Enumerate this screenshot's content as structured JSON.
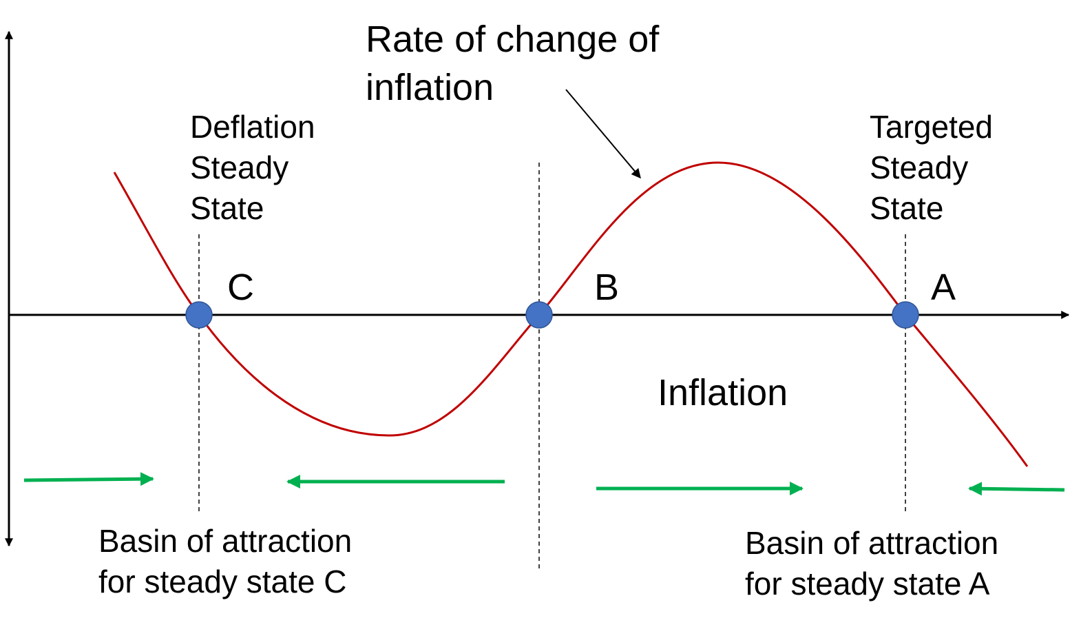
{
  "title": {
    "line1": "Rate of change of",
    "line2": "inflation"
  },
  "x_axis_label": "Inflation",
  "steady_states": [
    {
      "id": "C",
      "label": "C",
      "description": [
        "Deflation",
        "Steady",
        "State"
      ]
    },
    {
      "id": "B",
      "label": "B",
      "description": []
    },
    {
      "id": "A",
      "label": "A",
      "description": [
        "Targeted",
        "Steady",
        "State"
      ]
    }
  ],
  "basins": {
    "c": [
      "Basin of attraction",
      "for steady state C"
    ],
    "a": [
      "Basin of attraction",
      "for steady state A"
    ]
  },
  "colors": {
    "curve": "#c00000",
    "steady_state_dot": "#4472c4",
    "dot_outline": "#2f5597",
    "flow_arrow": "#00b050",
    "axis": "#000000"
  },
  "flow_directions": [
    "right",
    "left",
    "right",
    "left"
  ]
}
